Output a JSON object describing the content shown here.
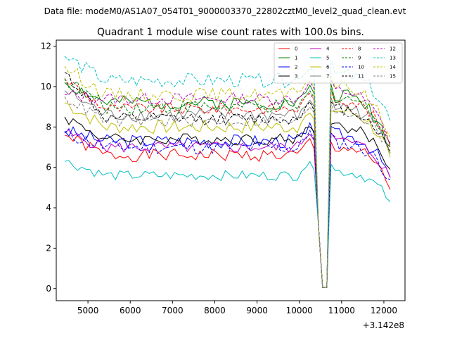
{
  "chart_data": {
    "type": "line",
    "suptitle": "Data file: modeM0/AS1A07_054T01_9000003370_22802cztM0_level2_quad_clean.evt",
    "title": "Quadrant 1 module wise count rates with 100.0s bins.",
    "xlabel": "",
    "ylabel": "",
    "x_offset_label": "+3.142e8",
    "xlim": [
      4250,
      12500
    ],
    "ylim": [
      -0.6,
      12.3
    ],
    "xticks": [
      5000,
      6000,
      7000,
      8000,
      9000,
      10000,
      11000,
      12000
    ],
    "yticks": [
      0,
      2,
      4,
      6,
      8,
      10,
      12
    ],
    "x_start": 4450,
    "x_step": 100,
    "n_points": 78,
    "dip_indices": [
      59,
      60,
      61,
      62,
      63
    ],
    "dip_profile": [
      {
        "index": 59,
        "value_fraction": 1.05
      },
      {
        "index": 60,
        "value": 3.2
      },
      {
        "index": 61,
        "value": 0.05
      },
      {
        "index": 62,
        "value": 0.05
      },
      {
        "index": 63,
        "value_fraction": 1.1
      }
    ],
    "legend": {
      "placement": "top-right",
      "columns": 4
    },
    "series": [
      {
        "name": "0",
        "color": "#ff0000",
        "dash": "solid",
        "start": 7.6,
        "level": 6.6,
        "end_level": 7.0,
        "end": 4.9,
        "amplitude": 0.32,
        "seed": 1
      },
      {
        "name": "1",
        "color": "#008000",
        "dash": "solid",
        "start": 10.2,
        "level": 9.2,
        "end_level": 9.6,
        "end": 7.0,
        "amplitude": 0.35,
        "seed": 2
      },
      {
        "name": "2",
        "color": "#0000ff",
        "dash": "solid",
        "start": 7.8,
        "level": 7.3,
        "end_level": 7.6,
        "end": 5.5,
        "amplitude": 0.35,
        "seed": 3
      },
      {
        "name": "3",
        "color": "#000000",
        "dash": "solid",
        "start": 8.5,
        "level": 7.4,
        "end_level": 8.0,
        "end": 5.9,
        "amplitude": 0.3,
        "seed": 4
      },
      {
        "name": "4",
        "color": "#bf00bf",
        "dash": "solid",
        "start": 7.7,
        "level": 7.0,
        "end_level": 7.3,
        "end": 5.5,
        "amplitude": 0.3,
        "seed": 5
      },
      {
        "name": "5",
        "color": "#00bfbf",
        "dash": "solid",
        "start": 6.3,
        "level": 5.6,
        "end_level": 5.8,
        "end": 4.3,
        "amplitude": 0.25,
        "seed": 6
      },
      {
        "name": "6",
        "color": "#bfbf00",
        "dash": "solid",
        "start": 9.2,
        "level": 8.0,
        "end_level": 8.8,
        "end": 6.5,
        "amplitude": 0.35,
        "seed": 7
      },
      {
        "name": "7",
        "color": "#808080",
        "dash": "solid",
        "start": 9.8,
        "level": 8.6,
        "end_level": 9.0,
        "end": 6.8,
        "amplitude": 0.35,
        "seed": 8
      },
      {
        "name": "8",
        "color": "#ff0000",
        "dash": "dashed",
        "start": 10.4,
        "level": 8.9,
        "end_level": 9.4,
        "end": 7.0,
        "amplitude": 0.3,
        "seed": 9
      },
      {
        "name": "9",
        "color": "#008000",
        "dash": "dashed",
        "start": 10.4,
        "level": 9.0,
        "end_level": 9.5,
        "end": 7.1,
        "amplitude": 0.35,
        "seed": 10
      },
      {
        "name": "10",
        "color": "#0000ff",
        "dash": "dashed",
        "start": 7.7,
        "level": 7.0,
        "end_level": 7.2,
        "end": 5.4,
        "amplitude": 0.35,
        "seed": 11
      },
      {
        "name": "11",
        "color": "#000000",
        "dash": "dashed",
        "start": 10.7,
        "level": 8.4,
        "end_level": 8.9,
        "end": 6.7,
        "amplitude": 0.3,
        "seed": 12
      },
      {
        "name": "12",
        "color": "#bf00bf",
        "dash": "dashed",
        "start": 9.6,
        "level": 9.4,
        "end_level": 9.8,
        "end": 7.2,
        "amplitude": 0.3,
        "seed": 13
      },
      {
        "name": "13",
        "color": "#00bfbf",
        "dash": "dashed",
        "start": 11.5,
        "level": 10.3,
        "end_level": 10.6,
        "end": 8.3,
        "amplitude": 0.35,
        "seed": 14
      },
      {
        "name": "14",
        "color": "#bfbf00",
        "dash": "dashed",
        "start": 11.0,
        "level": 9.6,
        "end_level": 10.0,
        "end": 7.5,
        "amplitude": 0.35,
        "seed": 15
      },
      {
        "name": "15",
        "color": "#808080",
        "dash": "dashed",
        "start": 9.5,
        "level": 8.3,
        "end_level": 8.8,
        "end": 6.7,
        "amplitude": 0.3,
        "seed": 16
      }
    ]
  }
}
